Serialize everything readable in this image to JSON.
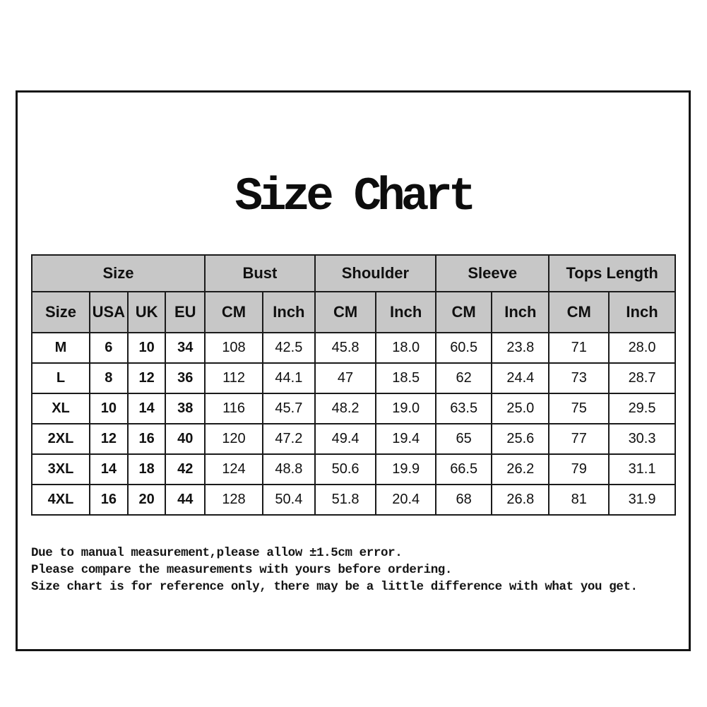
{
  "title": "Size Chart",
  "colors": {
    "background": "#ffffff",
    "header_bg": "#c7c7c7",
    "border": "#1b1b1b",
    "text": "#111111"
  },
  "chart_data": {
    "type": "table",
    "title": "Size Chart",
    "column_groups": [
      {
        "label": "Size",
        "span": 4
      },
      {
        "label": "Bust",
        "span": 2
      },
      {
        "label": "Shoulder",
        "span": 2
      },
      {
        "label": "Sleeve",
        "span": 2
      },
      {
        "label": "Tops Length",
        "span": 2
      }
    ],
    "columns": [
      "Size",
      "USA",
      "UK",
      "EU",
      "CM",
      "Inch",
      "CM",
      "Inch",
      "CM",
      "Inch",
      "CM",
      "Inch"
    ],
    "column_widths_pct": [
      9.0,
      5.9,
      5.9,
      6.1,
      9.0,
      8.1,
      9.5,
      9.3,
      8.7,
      8.9,
      9.3,
      10.3
    ],
    "rows": [
      [
        "M",
        "6",
        "10",
        "34",
        "108",
        "42.5",
        "45.8",
        "18.0",
        "60.5",
        "23.8",
        "71",
        "28.0"
      ],
      [
        "L",
        "8",
        "12",
        "36",
        "112",
        "44.1",
        "47",
        "18.5",
        "62",
        "24.4",
        "73",
        "28.7"
      ],
      [
        "XL",
        "10",
        "14",
        "38",
        "116",
        "45.7",
        "48.2",
        "19.0",
        "63.5",
        "25.0",
        "75",
        "29.5"
      ],
      [
        "2XL",
        "12",
        "16",
        "40",
        "120",
        "47.2",
        "49.4",
        "19.4",
        "65",
        "25.6",
        "77",
        "30.3"
      ],
      [
        "3XL",
        "14",
        "18",
        "42",
        "124",
        "48.8",
        "50.6",
        "19.9",
        "66.5",
        "26.2",
        "79",
        "31.1"
      ],
      [
        "4XL",
        "16",
        "20",
        "44",
        "128",
        "50.4",
        "51.8",
        "20.4",
        "68",
        "26.8",
        "81",
        "31.9"
      ]
    ],
    "bold_columns": [
      0,
      1,
      2,
      3
    ],
    "notes": [
      "Due to manual measurement,please allow ±1.5cm error.",
      "Please compare the measurements with yours before ordering.",
      "Size chart is for reference only, there may be a little difference with what you get."
    ]
  }
}
